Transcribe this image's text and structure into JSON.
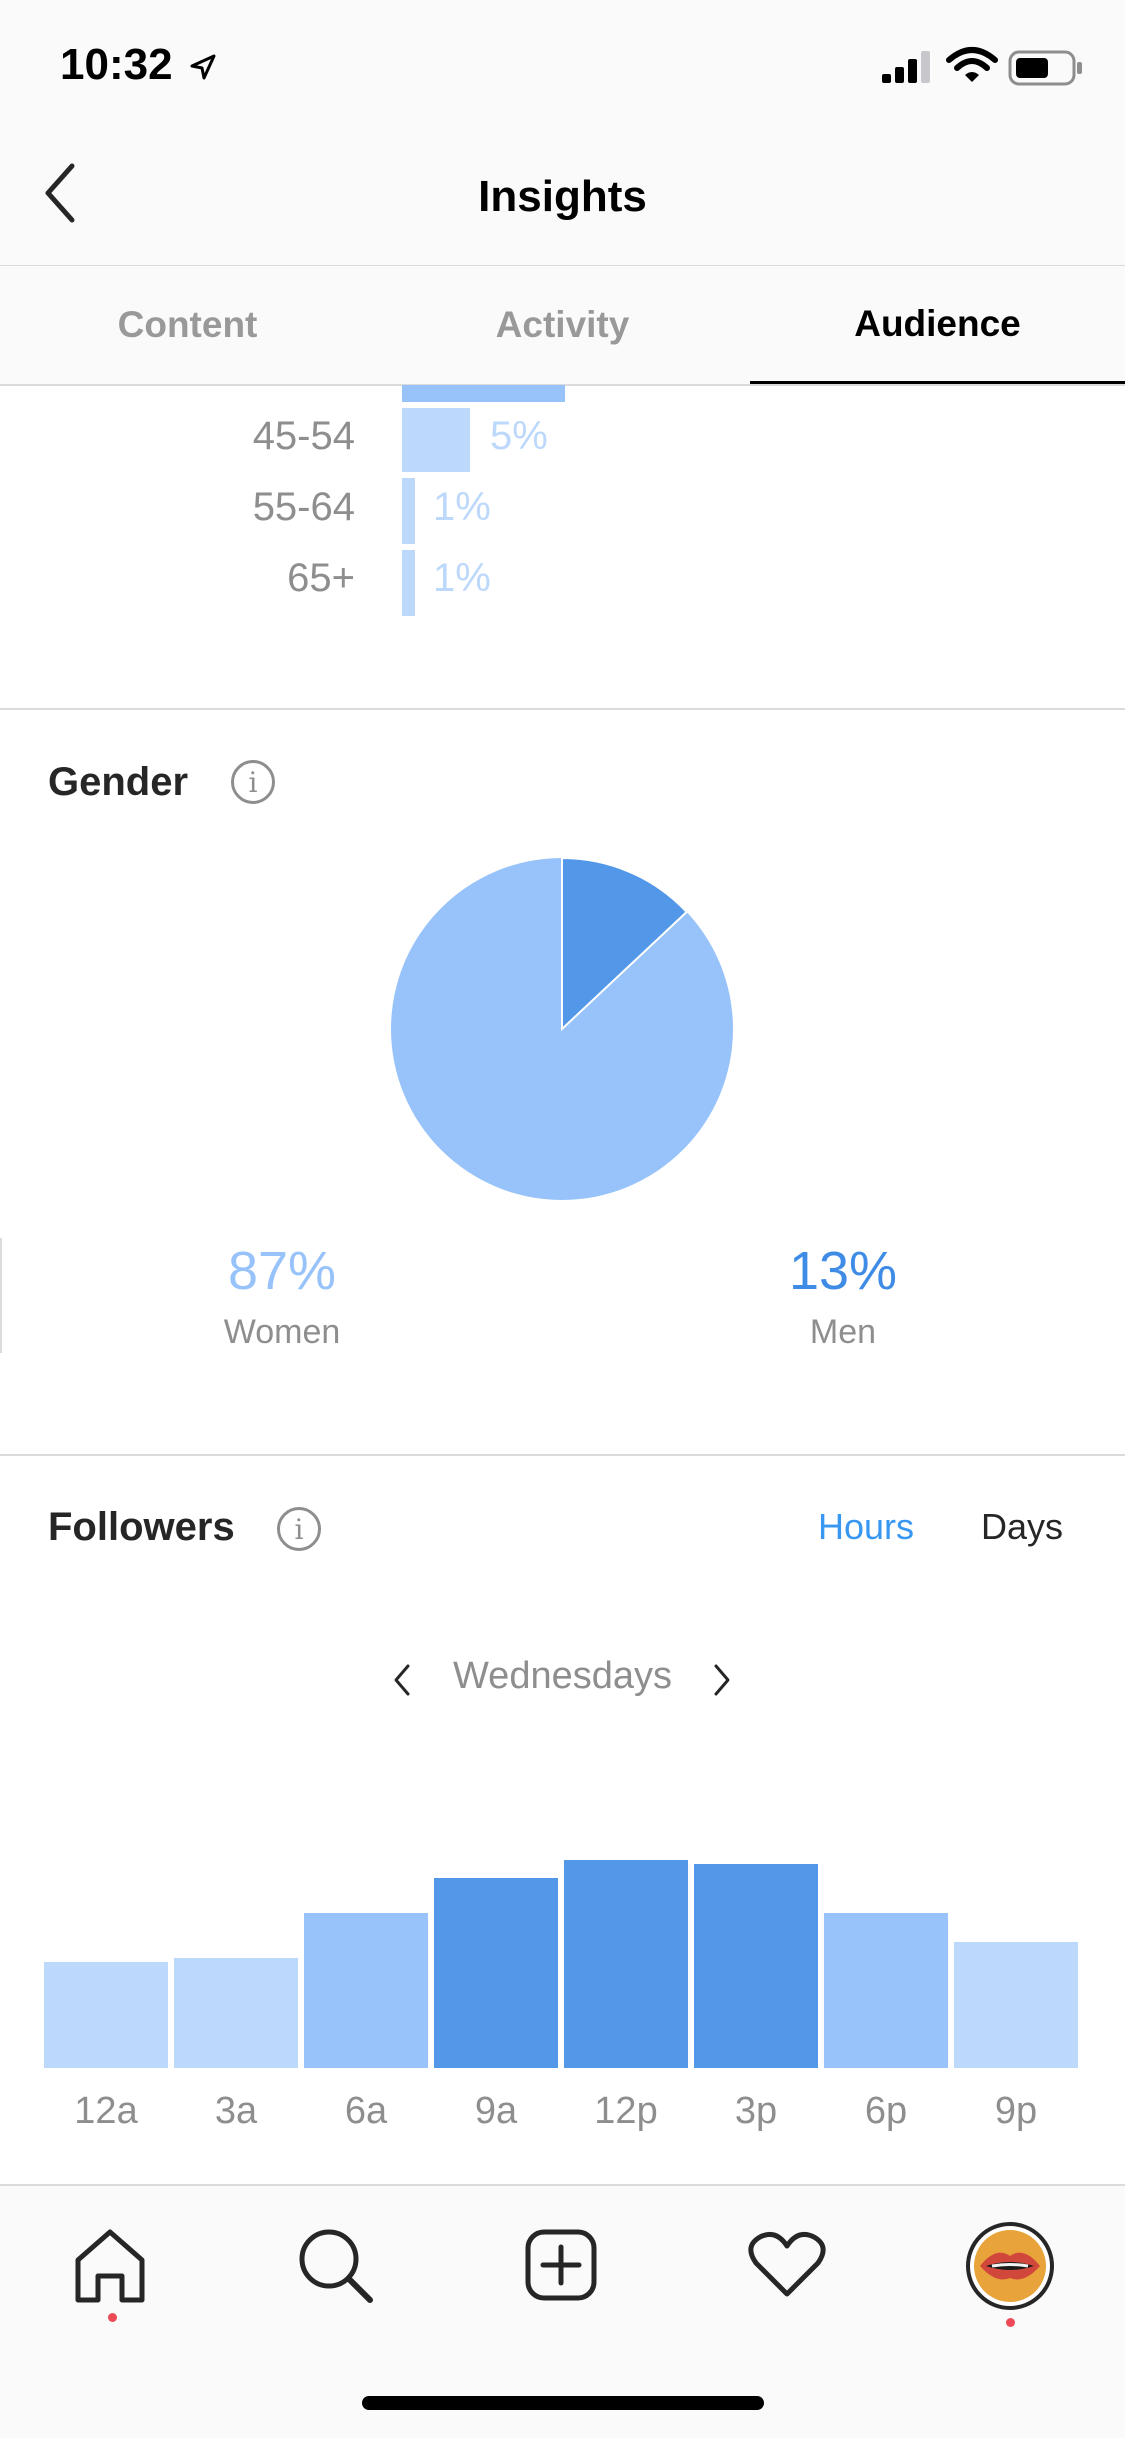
{
  "status_bar": {
    "time": "10:32"
  },
  "header": {
    "title": "Insights"
  },
  "tabs": [
    {
      "label": "Content",
      "active": false
    },
    {
      "label": "Activity",
      "active": false
    },
    {
      "label": "Audience",
      "active": true
    }
  ],
  "age_range": {
    "rows": [
      {
        "label": "45-54",
        "value": "5%",
        "percent": 5
      },
      {
        "label": "55-64",
        "value": "1%",
        "percent": 1
      },
      {
        "label": "65+",
        "value": "1%",
        "percent": 1
      }
    ]
  },
  "gender": {
    "title": "Gender",
    "women": {
      "value": "87%",
      "label": "Women",
      "percent": 87,
      "color": "#97c3fa"
    },
    "men": {
      "value": "13%",
      "label": "Men",
      "percent": 13,
      "color": "#5297e8"
    }
  },
  "followers": {
    "title": "Followers",
    "toggle": {
      "hours": "Hours",
      "days": "Days",
      "selected": "Hours"
    },
    "day": "Wednesdays"
  },
  "chart_data": {
    "type": "bar",
    "categories": [
      "12a",
      "3a",
      "6a",
      "9a",
      "12p",
      "3p",
      "6p",
      "9p"
    ],
    "values": [
      52,
      54,
      76,
      93,
      102,
      100,
      76,
      62
    ],
    "colors": [
      "#bcd8fb",
      "#bcd8fb",
      "#97c3fa",
      "#5297e8",
      "#5297e8",
      "#5297e8",
      "#97c3fa",
      "#bcd8fb"
    ],
    "title": "",
    "xlabel": "",
    "ylabel": "",
    "ylim": [
      0,
      102
    ]
  },
  "colors": {
    "accent": "#3897f0",
    "nav_dot": "#ed4956"
  },
  "bottom_nav": [
    "home-icon",
    "search-icon",
    "add-post-icon",
    "heart-icon",
    "profile-avatar"
  ]
}
